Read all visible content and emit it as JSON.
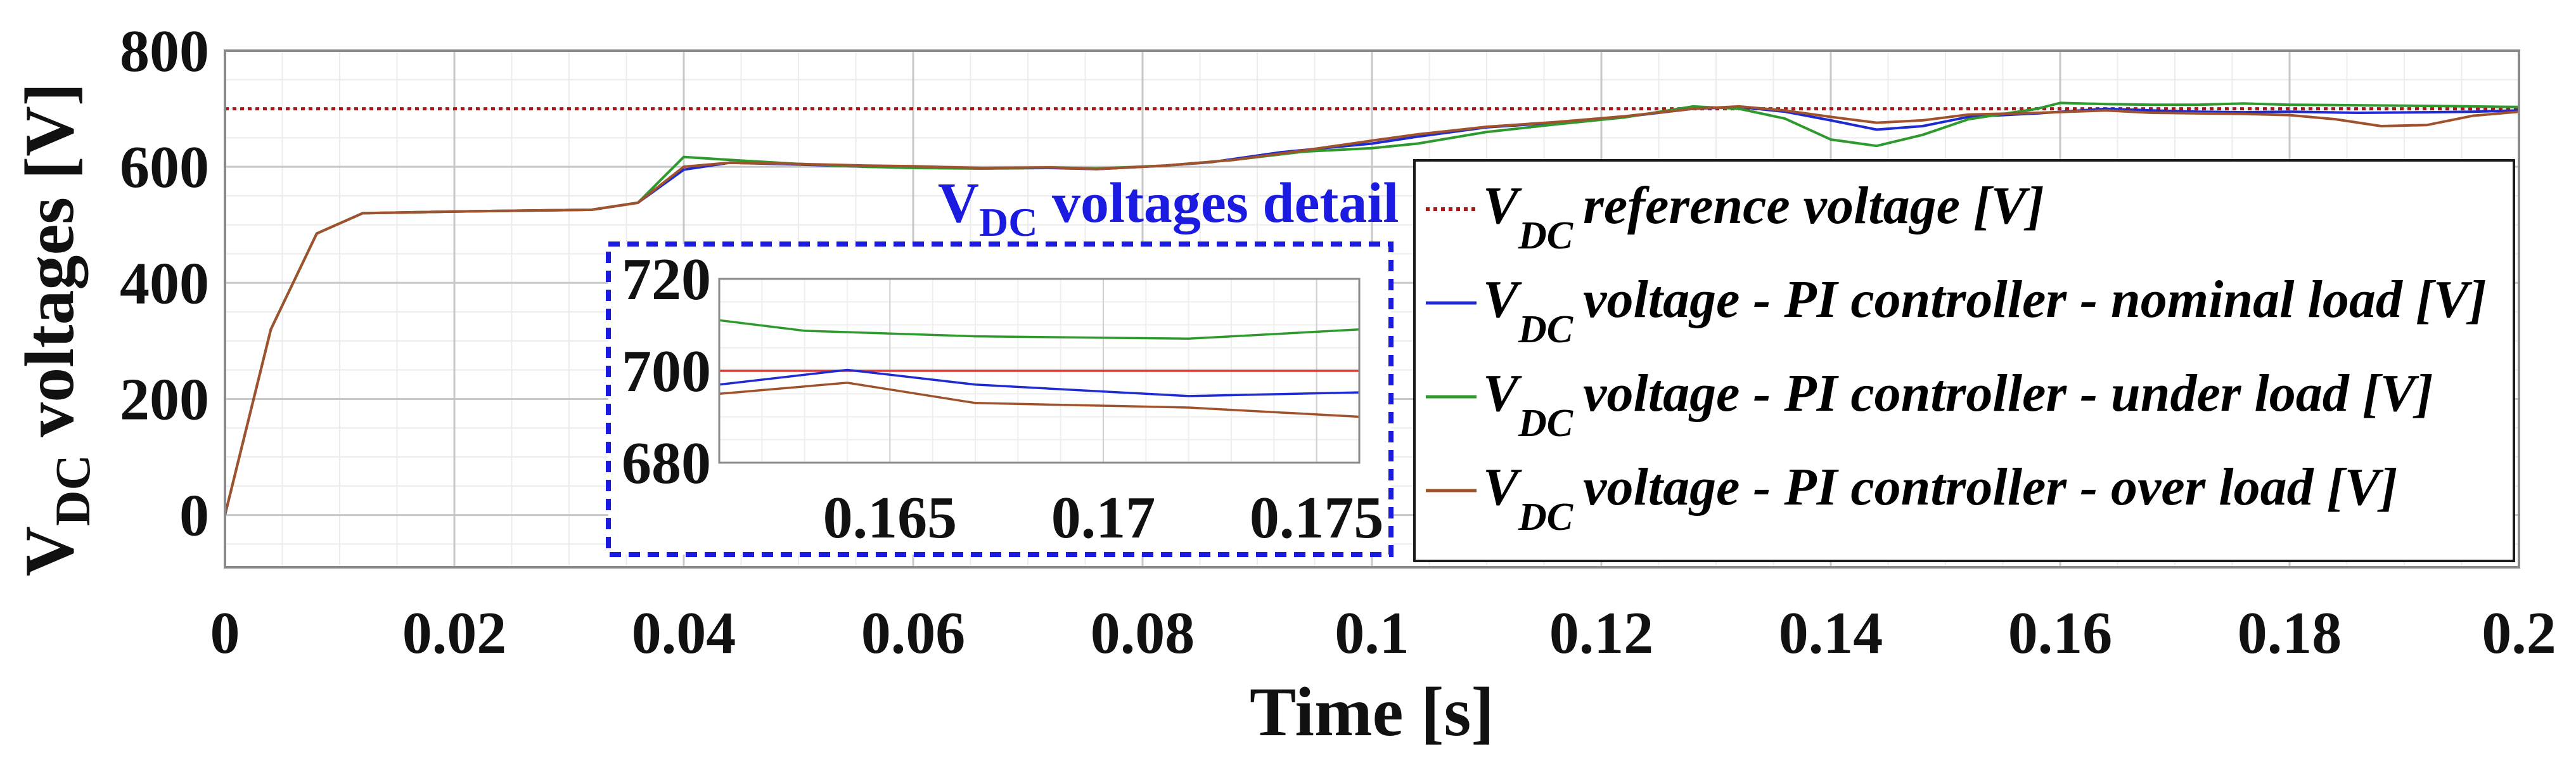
{
  "chart_data": {
    "type": "line",
    "xlabel": "Time [s]",
    "ylabel": {
      "prefix": "V",
      "sub": "DC",
      "suffix": " voltages [V]"
    },
    "xlim": [
      0,
      0.2
    ],
    "ylim": [
      -90,
      800
    ],
    "x_ticks": [
      {
        "value": 0,
        "label": "0"
      },
      {
        "value": 0.02,
        "label": "0.02"
      },
      {
        "value": 0.04,
        "label": "0.04"
      },
      {
        "value": 0.06,
        "label": "0.06"
      },
      {
        "value": 0.08,
        "label": "0.08"
      },
      {
        "value": 0.1,
        "label": "0.1"
      },
      {
        "value": 0.12,
        "label": "0.12"
      },
      {
        "value": 0.14,
        "label": "0.14"
      },
      {
        "value": 0.16,
        "label": "0.16"
      },
      {
        "value": 0.18,
        "label": "0.18"
      },
      {
        "value": 0.2,
        "label": "0.2"
      }
    ],
    "y_ticks": [
      {
        "value": 0,
        "label": "0"
      },
      {
        "value": 200,
        "label": "200"
      },
      {
        "value": 400,
        "label": "400"
      },
      {
        "value": 600,
        "label": "600"
      },
      {
        "value": 800,
        "label": "800"
      }
    ],
    "grid": true,
    "legend_position": "right",
    "series": [
      {
        "name": "reference voltage [V]",
        "legend_prefix": "V",
        "legend_sub": "DC",
        "color": "#b01515",
        "style": "dotted",
        "points": [
          [
            0,
            700
          ],
          [
            0.2,
            700
          ]
        ]
      },
      {
        "name": "voltage - PI controller - nominal load  [V]",
        "legend_prefix": "V",
        "legend_sub": "DC",
        "color": "#1f2bd1",
        "style": "solid",
        "points": [
          [
            0,
            0
          ],
          [
            0.004,
            320
          ],
          [
            0.008,
            485
          ],
          [
            0.012,
            520
          ],
          [
            0.02,
            523
          ],
          [
            0.032,
            526
          ],
          [
            0.036,
            538
          ],
          [
            0.04,
            595
          ],
          [
            0.044,
            607
          ],
          [
            0.05,
            604
          ],
          [
            0.056,
            600
          ],
          [
            0.06,
            599
          ],
          [
            0.066,
            597
          ],
          [
            0.072,
            598
          ],
          [
            0.076,
            596
          ],
          [
            0.082,
            602
          ],
          [
            0.086,
            608
          ],
          [
            0.092,
            625
          ],
          [
            0.1,
            640
          ],
          [
            0.104,
            652
          ],
          [
            0.11,
            668
          ],
          [
            0.116,
            676
          ],
          [
            0.122,
            686
          ],
          [
            0.128,
            700
          ],
          [
            0.132,
            703
          ],
          [
            0.136,
            695
          ],
          [
            0.14,
            680
          ],
          [
            0.144,
            664
          ],
          [
            0.148,
            670
          ],
          [
            0.152,
            686
          ],
          [
            0.158,
            692
          ],
          [
            0.164,
            700
          ],
          [
            0.168,
            697
          ],
          [
            0.172,
            695
          ],
          [
            0.176,
            694
          ],
          [
            0.18,
            695
          ],
          [
            0.186,
            693
          ],
          [
            0.192,
            694
          ],
          [
            0.196,
            695
          ],
          [
            0.2,
            697
          ]
        ]
      },
      {
        "name": "voltage - PI controller - under load  [V]",
        "legend_prefix": "V",
        "legend_sub": "DC",
        "color": "#2e9a2e",
        "style": "solid",
        "points": [
          [
            0,
            0
          ],
          [
            0.004,
            320
          ],
          [
            0.008,
            485
          ],
          [
            0.012,
            520
          ],
          [
            0.02,
            523
          ],
          [
            0.032,
            526
          ],
          [
            0.036,
            538
          ],
          [
            0.04,
            617
          ],
          [
            0.044,
            612
          ],
          [
            0.05,
            605
          ],
          [
            0.056,
            600
          ],
          [
            0.06,
            598
          ],
          [
            0.066,
            597
          ],
          [
            0.072,
            599
          ],
          [
            0.076,
            597
          ],
          [
            0.082,
            602
          ],
          [
            0.088,
            612
          ],
          [
            0.094,
            626
          ],
          [
            0.1,
            632
          ],
          [
            0.104,
            640
          ],
          [
            0.11,
            660
          ],
          [
            0.116,
            673
          ],
          [
            0.122,
            685
          ],
          [
            0.128,
            704
          ],
          [
            0.132,
            700
          ],
          [
            0.136,
            683
          ],
          [
            0.14,
            647
          ],
          [
            0.144,
            636
          ],
          [
            0.148,
            655
          ],
          [
            0.152,
            682
          ],
          [
            0.158,
            700
          ],
          [
            0.16,
            710
          ],
          [
            0.164,
            708
          ],
          [
            0.168,
            707
          ],
          [
            0.172,
            707
          ],
          [
            0.176,
            709
          ],
          [
            0.18,
            707
          ],
          [
            0.186,
            706
          ],
          [
            0.192,
            705
          ],
          [
            0.196,
            704
          ],
          [
            0.2,
            703
          ]
        ]
      },
      {
        "name": "voltage - PI controller - over load  [V]",
        "legend_prefix": "V",
        "legend_sub": "DC",
        "color": "#a0522d",
        "style": "solid",
        "points": [
          [
            0,
            0
          ],
          [
            0.004,
            320
          ],
          [
            0.008,
            485
          ],
          [
            0.012,
            520
          ],
          [
            0.02,
            523
          ],
          [
            0.032,
            526
          ],
          [
            0.036,
            538
          ],
          [
            0.04,
            600
          ],
          [
            0.044,
            607
          ],
          [
            0.05,
            605
          ],
          [
            0.056,
            602
          ],
          [
            0.06,
            601
          ],
          [
            0.066,
            598
          ],
          [
            0.072,
            599
          ],
          [
            0.076,
            596
          ],
          [
            0.082,
            602
          ],
          [
            0.088,
            612
          ],
          [
            0.094,
            628
          ],
          [
            0.1,
            645
          ],
          [
            0.104,
            656
          ],
          [
            0.11,
            669
          ],
          [
            0.116,
            677
          ],
          [
            0.122,
            687
          ],
          [
            0.128,
            700
          ],
          [
            0.132,
            704
          ],
          [
            0.136,
            697
          ],
          [
            0.14,
            686
          ],
          [
            0.144,
            676
          ],
          [
            0.148,
            680
          ],
          [
            0.152,
            690
          ],
          [
            0.158,
            693
          ],
          [
            0.164,
            697
          ],
          [
            0.168,
            693
          ],
          [
            0.172,
            692
          ],
          [
            0.176,
            691
          ],
          [
            0.18,
            689
          ],
          [
            0.184,
            682
          ],
          [
            0.188,
            670
          ],
          [
            0.192,
            672
          ],
          [
            0.196,
            688
          ],
          [
            0.2,
            695
          ]
        ]
      }
    ],
    "inset": {
      "title_prefix": "V",
      "title_sub": "DC",
      "title_suffix": " voltages detail",
      "xlim": [
        0.161,
        0.176
      ],
      "ylim": [
        680,
        720
      ],
      "x_ticks": [
        {
          "value": 0.165,
          "label": "0.165"
        },
        {
          "value": 0.17,
          "label": "0.17"
        },
        {
          "value": 0.175,
          "label": "0.175"
        }
      ],
      "y_ticks": [
        {
          "value": 680,
          "label": "680"
        },
        {
          "value": 700,
          "label": "700"
        },
        {
          "value": 720,
          "label": "720"
        }
      ],
      "series": [
        {
          "name": "reference",
          "color": "#d93a3a",
          "points": [
            [
              0.161,
              700
            ],
            [
              0.176,
              700
            ]
          ]
        },
        {
          "name": "nominal load",
          "color": "#1f2bd1",
          "points": [
            [
              0.161,
              697
            ],
            [
              0.164,
              700.2
            ],
            [
              0.167,
              697
            ],
            [
              0.172,
              694.5
            ],
            [
              0.176,
              695.3
            ]
          ]
        },
        {
          "name": "under load",
          "color": "#2e9a2e",
          "points": [
            [
              0.161,
              711
            ],
            [
              0.163,
              708.7
            ],
            [
              0.167,
              707.5
            ],
            [
              0.172,
              707
            ],
            [
              0.176,
              709
            ]
          ]
        },
        {
          "name": "over load",
          "color": "#a0522d",
          "points": [
            [
              0.161,
              695
            ],
            [
              0.164,
              697.4
            ],
            [
              0.167,
              693
            ],
            [
              0.172,
              692
            ],
            [
              0.176,
              690
            ]
          ]
        }
      ]
    }
  }
}
